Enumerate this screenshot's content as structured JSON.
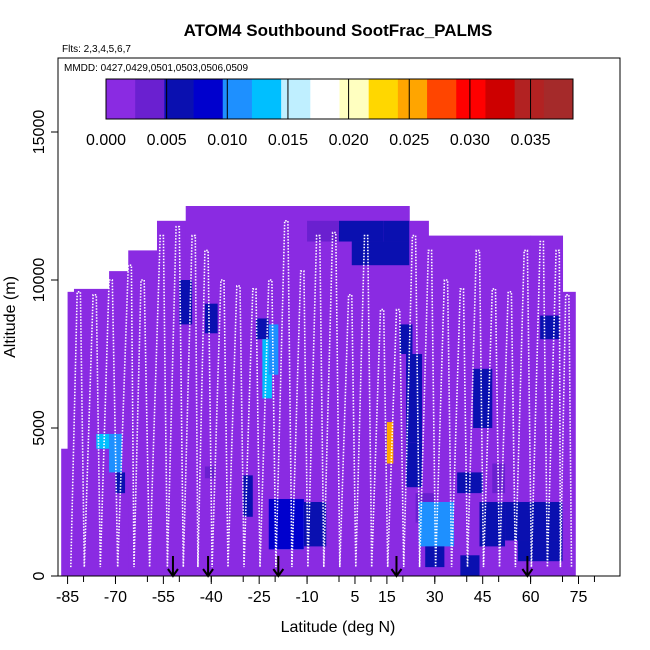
{
  "chart_data": {
    "type": "heatmap",
    "title": "ATOM4 Southbound SootFrac_PALMS",
    "flights_note": "Flts: 2,3,4,5,6,7",
    "dates_note": "MMDD: 0427,0429,0501,0503,0506,0509",
    "xlabel": "Latitude (deg N)",
    "ylabel": "Altitude (m)",
    "xlim": [
      -88,
      88
    ],
    "ylim": [
      0,
      17500
    ],
    "x_ticks": [
      -85,
      -70,
      -55,
      -40,
      -25,
      -10,
      5,
      15,
      30,
      45,
      60,
      75
    ],
    "y_ticks": [
      0,
      5000,
      10000,
      15000
    ],
    "colorbar": {
      "min": 0.0,
      "max": 0.0385,
      "ticks": [
        "0.000",
        "0.005",
        "0.010",
        "0.015",
        "0.020",
        "0.025",
        "0.030",
        "0.035"
      ],
      "tick_values": [
        0.0,
        0.005,
        0.01,
        0.015,
        0.02,
        0.025,
        0.03,
        0.035
      ],
      "colors": [
        "#8a2be2",
        "#6a20d0",
        "#0a10b0",
        "#0000cd",
        "#1e90ff",
        "#00bfff",
        "#bfefff",
        "#ffffff",
        "#ffffc0",
        "#ffd700",
        "#ffa500",
        "#ff4500",
        "#ff0000",
        "#cd0000",
        "#b22222",
        "#a52a2a"
      ]
    },
    "background_value": 0.0,
    "coverage_columns": [
      {
        "lat0": -87,
        "lat1": -85,
        "alt_top": 4300
      },
      {
        "lat0": -85,
        "lat1": -83,
        "alt_top": 9600
      },
      {
        "lat0": -83,
        "lat1": -72,
        "alt_top": 9700
      },
      {
        "lat0": -72,
        "lat1": -66,
        "alt_top": 10300
      },
      {
        "lat0": -66,
        "lat1": -57,
        "alt_top": 11000
      },
      {
        "lat0": -57,
        "lat1": -48,
        "alt_top": 12000
      },
      {
        "lat0": -48,
        "lat1": 22,
        "alt_top": 12500
      },
      {
        "lat0": 22,
        "lat1": 28,
        "alt_top": 12000
      },
      {
        "lat0": 28,
        "lat1": 60,
        "alt_top": 11500
      },
      {
        "lat0": 60,
        "lat1": 70,
        "alt_top": 11500
      },
      {
        "lat0": 70,
        "lat1": 74,
        "alt_top": 9600
      }
    ],
    "anomaly_cells": [
      {
        "lat0": -76,
        "lat1": -72,
        "alt0": 4300,
        "alt1": 4800,
        "value": 0.014
      },
      {
        "lat0": -72,
        "lat1": -68,
        "alt0": 3500,
        "alt1": 4800,
        "value": 0.012
      },
      {
        "lat0": -70,
        "lat1": -67,
        "alt0": 2800,
        "alt1": 3500,
        "value": 0.006
      },
      {
        "lat0": -50,
        "lat1": -46,
        "alt0": 8500,
        "alt1": 10000,
        "value": 0.006
      },
      {
        "lat0": -42,
        "lat1": -38,
        "alt0": 8200,
        "alt1": 9200,
        "value": 0.006
      },
      {
        "lat0": -42,
        "lat1": -39,
        "alt0": 3300,
        "alt1": 3700,
        "value": 0.004
      },
      {
        "lat0": -30,
        "lat1": -27,
        "alt0": 2000,
        "alt1": 3400,
        "value": 0.006
      },
      {
        "lat0": -26,
        "lat1": -22,
        "alt0": 8000,
        "alt1": 8700,
        "value": 0.005
      },
      {
        "lat0": -24,
        "lat1": -21,
        "alt0": 6000,
        "alt1": 8000,
        "value": 0.013
      },
      {
        "lat0": -22,
        "lat1": -19,
        "alt0": 6800,
        "alt1": 8500,
        "value": 0.011
      },
      {
        "lat0": -20,
        "lat1": -11,
        "alt0": 900,
        "alt1": 2400,
        "value": 0.018
      },
      {
        "lat0": -22,
        "lat1": -11,
        "alt0": 900,
        "alt1": 2600,
        "value": 0.009
      },
      {
        "lat0": -11,
        "lat1": -4,
        "alt0": 1000,
        "alt1": 2500,
        "value": 0.005
      },
      {
        "lat0": -10,
        "lat1": 0,
        "alt0": 11300,
        "alt1": 12000,
        "value": 0.004
      },
      {
        "lat0": 0,
        "lat1": 14,
        "alt0": 11300,
        "alt1": 12000,
        "value": 0.006
      },
      {
        "lat0": 14,
        "lat1": 22,
        "alt0": 11300,
        "alt1": 12000,
        "value": 0.005
      },
      {
        "lat0": 4,
        "lat1": 22,
        "alt0": 10500,
        "alt1": 11300,
        "value": 0.006
      },
      {
        "lat0": 19,
        "lat1": 23,
        "alt0": 7500,
        "alt1": 8500,
        "value": 0.006
      },
      {
        "lat0": 21,
        "lat1": 26,
        "alt0": 4500,
        "alt1": 7500,
        "value": 0.007
      },
      {
        "lat0": 21,
        "lat1": 26,
        "alt0": 3000,
        "alt1": 4500,
        "value": 0.005
      },
      {
        "lat0": 15,
        "lat1": 17,
        "alt0": 3800,
        "alt1": 5200,
        "value": 0.025
      },
      {
        "lat0": 24,
        "lat1": 30,
        "alt0": 1800,
        "alt1": 2800,
        "value": 0.004
      },
      {
        "lat0": 25,
        "lat1": 36,
        "alt0": 1000,
        "alt1": 2500,
        "value": 0.012
      },
      {
        "lat0": 27,
        "lat1": 33,
        "alt0": 300,
        "alt1": 1000,
        "value": 0.006
      },
      {
        "lat0": 37,
        "lat1": 45,
        "alt0": 2800,
        "alt1": 3500,
        "value": 0.005
      },
      {
        "lat0": 42,
        "lat1": 48,
        "alt0": 5000,
        "alt1": 7000,
        "value": 0.006
      },
      {
        "lat0": 44,
        "lat1": 52,
        "alt0": 1000,
        "alt1": 2500,
        "value": 0.006
      },
      {
        "lat0": 48,
        "lat1": 52,
        "alt0": 2800,
        "alt1": 3800,
        "value": 0.004
      },
      {
        "lat0": 52,
        "lat1": 70,
        "alt0": 1200,
        "alt1": 2500,
        "value": 0.006
      },
      {
        "lat0": 56,
        "lat1": 70,
        "alt0": 500,
        "alt1": 1200,
        "value": 0.007
      },
      {
        "lat0": 63,
        "lat1": 69,
        "alt0": 8000,
        "alt1": 8800,
        "value": 0.005
      },
      {
        "lat0": 38,
        "lat1": 44,
        "alt0": 0,
        "alt1": 700,
        "value": 0.005
      }
    ],
    "profile_latitudes": [
      -82,
      -77,
      -72,
      -66,
      -62,
      -56,
      -51,
      -46,
      -42,
      -37,
      -32,
      -27,
      -22,
      -17,
      -12,
      -7,
      -2,
      3,
      8,
      13,
      18,
      23,
      28,
      33,
      38,
      43,
      48,
      53,
      58,
      63,
      68,
      71
    ],
    "profile_tops": [
      9600,
      9500,
      10000,
      10500,
      10000,
      11500,
      11800,
      11500,
      11000,
      10000,
      9800,
      9700,
      10000,
      12000,
      10300,
      11500,
      11600,
      9500,
      11500,
      9000,
      9000,
      11500,
      11000,
      10000,
      9700,
      11000,
      9700,
      9600,
      11000,
      11300,
      11000,
      9500
    ],
    "arrow_latitudes": [
      -52,
      -41,
      -19,
      18,
      59
    ],
    "bottom_arrow_label": ""
  }
}
